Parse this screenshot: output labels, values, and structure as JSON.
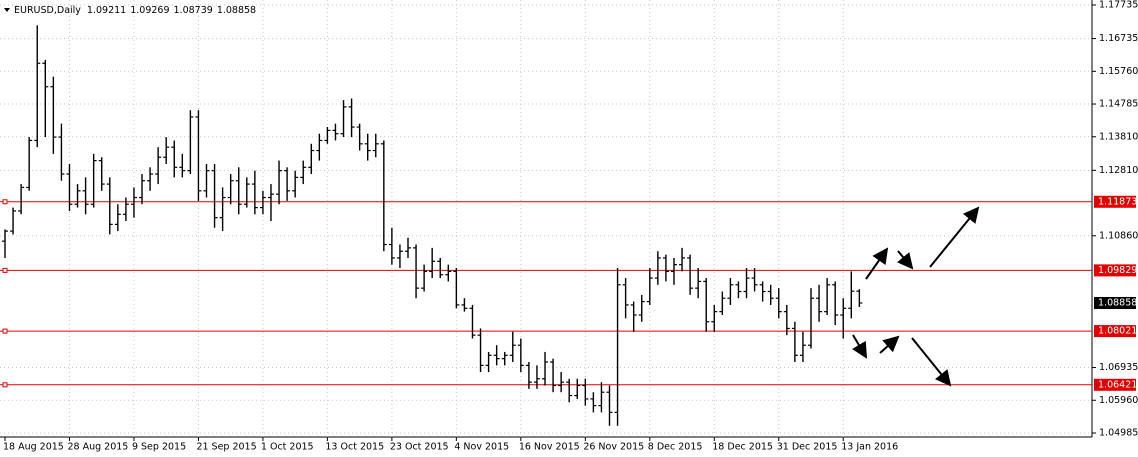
{
  "chart_data": {
    "type": "ohlc",
    "title": "EURUSD,Daily",
    "categories": [
      "18 Aug 2015",
      null,
      null,
      null,
      null,
      null,
      null,
      null,
      "28 Aug 2015",
      null,
      null,
      null,
      null,
      null,
      null,
      null,
      "9 Sep 2015",
      null,
      null,
      null,
      null,
      null,
      null,
      null,
      "21 Sep 2015",
      null,
      null,
      null,
      null,
      null,
      null,
      null,
      "1 Oct 2015",
      null,
      null,
      null,
      null,
      null,
      null,
      null,
      "13 Oct 2015",
      null,
      null,
      null,
      null,
      null,
      null,
      null,
      "23 Oct 2015",
      null,
      null,
      null,
      null,
      null,
      null,
      null,
      "4 Nov 2015",
      null,
      null,
      null,
      null,
      null,
      null,
      null,
      "16 Nov 2015",
      null,
      null,
      null,
      null,
      null,
      null,
      null,
      "26 Nov 2015",
      null,
      null,
      null,
      null,
      null,
      null,
      null,
      "8 Dec 2015",
      null,
      null,
      null,
      null,
      null,
      null,
      null,
      "18 Dec 2015",
      null,
      null,
      null,
      null,
      null,
      null,
      null,
      "31 Dec 2015",
      null,
      null,
      null,
      null,
      null,
      null,
      null,
      "13 Jan 2016",
      null,
      null
    ],
    "open": [
      1.107,
      1.11,
      1.116,
      1.123,
      1.137,
      1.16,
      1.153,
      1.138,
      1.127,
      1.118,
      1.122,
      1.118,
      1.131,
      1.124,
      1.112,
      1.115,
      1.118,
      1.12,
      1.125,
      1.127,
      1.132,
      1.135,
      1.129,
      1.128,
      1.144,
      1.122,
      1.128,
      1.114,
      1.12,
      1.125,
      1.118,
      1.124,
      1.117,
      1.12,
      1.121,
      1.128,
      1.122,
      1.126,
      1.129,
      1.134,
      1.137,
      1.14,
      1.139,
      1.147,
      1.141,
      1.136,
      1.134,
      1.136,
      1.106,
      1.102,
      1.104,
      1.105,
      1.093,
      1.098,
      1.101,
      1.097,
      1.098,
      1.088,
      1.087,
      1.079,
      1.07,
      1.073,
      1.072,
      1.073,
      1.076,
      1.07,
      1.065,
      1.066,
      1.071,
      1.064,
      1.065,
      1.061,
      1.064,
      1.06,
      1.058,
      1.062,
      1.056,
      1.094,
      1.088,
      1.085,
      1.089,
      1.096,
      1.102,
      1.098,
      1.1,
      1.102,
      1.093,
      1.095,
      1.083,
      1.086,
      1.09,
      1.094,
      1.092,
      1.096,
      1.094,
      1.092,
      1.09,
      1.086,
      1.081,
      1.073,
      1.076,
      1.09,
      1.086,
      1.094,
      1.085,
      1.087,
      1.09211
    ],
    "high": [
      1.1105,
      1.117,
      1.124,
      1.138,
      1.1713,
      1.161,
      1.156,
      1.142,
      1.13,
      1.124,
      1.126,
      1.133,
      1.132,
      1.126,
      1.118,
      1.12,
      1.123,
      1.127,
      1.129,
      1.135,
      1.138,
      1.137,
      1.133,
      1.146,
      1.146,
      1.13,
      1.13,
      1.123,
      1.127,
      1.129,
      1.126,
      1.128,
      1.122,
      1.124,
      1.131,
      1.129,
      1.128,
      1.131,
      1.136,
      1.139,
      1.141,
      1.142,
      1.149,
      1.1495,
      1.142,
      1.139,
      1.139,
      1.137,
      1.111,
      1.106,
      1.108,
      1.106,
      1.1,
      1.105,
      1.102,
      1.1,
      1.099,
      1.09,
      1.088,
      1.081,
      1.074,
      1.076,
      1.074,
      1.08,
      1.078,
      1.071,
      1.07,
      1.074,
      1.072,
      1.068,
      1.066,
      1.066,
      1.066,
      1.062,
      1.065,
      1.064,
      1.099,
      1.096,
      1.089,
      1.091,
      1.099,
      1.104,
      1.103,
      1.102,
      1.105,
      1.103,
      1.099,
      1.096,
      1.088,
      1.092,
      1.096,
      1.095,
      1.099,
      1.099,
      1.095,
      1.094,
      1.093,
      1.088,
      1.083,
      1.08,
      1.093,
      1.094,
      1.096,
      1.095,
      1.09,
      1.098,
      1.09269
    ],
    "low": [
      1.102,
      1.109,
      1.115,
      1.122,
      1.135,
      1.138,
      1.133,
      1.125,
      1.116,
      1.117,
      1.115,
      1.117,
      1.122,
      1.109,
      1.11,
      1.113,
      1.114,
      1.118,
      1.122,
      1.124,
      1.13,
      1.126,
      1.126,
      1.127,
      1.119,
      1.12,
      1.111,
      1.11,
      1.118,
      1.115,
      1.117,
      1.115,
      1.115,
      1.113,
      1.118,
      1.119,
      1.12,
      1.124,
      1.127,
      1.131,
      1.136,
      1.137,
      1.138,
      1.138,
      1.134,
      1.131,
      1.132,
      1.104,
      1.1,
      1.099,
      1.102,
      1.09,
      1.092,
      1.096,
      1.096,
      1.095,
      1.087,
      1.086,
      1.078,
      1.068,
      1.068,
      1.07,
      1.07,
      1.071,
      1.068,
      1.063,
      1.063,
      1.064,
      1.062,
      1.062,
      1.059,
      1.06,
      1.058,
      1.056,
      1.056,
      1.052,
      1.052,
      1.084,
      1.08,
      1.083,
      1.088,
      1.094,
      1.095,
      1.094,
      1.098,
      1.091,
      1.09,
      1.08,
      1.08,
      1.085,
      1.088,
      1.09,
      1.09,
      1.092,
      1.089,
      1.088,
      1.084,
      1.079,
      1.071,
      1.071,
      1.075,
      1.083,
      1.085,
      1.082,
      1.078,
      1.084,
      1.08739
    ],
    "close": [
      1.11,
      1.116,
      1.123,
      1.137,
      1.16,
      1.153,
      1.138,
      1.127,
      1.118,
      1.122,
      1.118,
      1.131,
      1.124,
      1.112,
      1.115,
      1.118,
      1.12,
      1.125,
      1.127,
      1.132,
      1.135,
      1.129,
      1.128,
      1.144,
      1.122,
      1.128,
      1.114,
      1.12,
      1.125,
      1.118,
      1.124,
      1.117,
      1.12,
      1.121,
      1.128,
      1.122,
      1.126,
      1.129,
      1.134,
      1.137,
      1.14,
      1.139,
      1.147,
      1.141,
      1.136,
      1.134,
      1.136,
      1.106,
      1.102,
      1.104,
      1.105,
      1.093,
      1.098,
      1.101,
      1.097,
      1.098,
      1.088,
      1.087,
      1.079,
      1.07,
      1.073,
      1.072,
      1.073,
      1.076,
      1.07,
      1.065,
      1.066,
      1.071,
      1.064,
      1.065,
      1.061,
      1.064,
      1.06,
      1.058,
      1.062,
      1.056,
      1.094,
      1.088,
      1.085,
      1.089,
      1.096,
      1.102,
      1.098,
      1.1,
      1.102,
      1.093,
      1.095,
      1.083,
      1.086,
      1.09,
      1.094,
      1.092,
      1.096,
      1.094,
      1.092,
      1.09,
      1.086,
      1.081,
      1.073,
      1.076,
      1.09,
      1.086,
      1.094,
      1.085,
      1.087,
      1.0921,
      1.08858
    ],
    "color": "#000000",
    "ylim": [
      1.04985,
      1.17735
    ],
    "yticks": [
      1.04985,
      {
        "value": 1.0596,
        "label": "1.05960"
      },
      1.06935,
      {
        "value": 1.1086,
        "label": "1.10860"
      },
      {
        "value": 1.1281,
        "label": "1.12810"
      },
      {
        "value": 1.1381,
        "label": "1.13810"
      },
      1.14785,
      {
        "value": 1.1576,
        "label": "1.15760"
      },
      1.16735,
      1.17735
    ],
    "grid": true,
    "levels": [
      {
        "value": 1.11873,
        "color": "#e00000"
      },
      {
        "value": 1.09829,
        "color": "#e00000"
      },
      {
        "value": 1.08021,
        "color": "#e00000"
      },
      {
        "value": 1.06421,
        "color": "#e00000"
      }
    ]
  }
}
